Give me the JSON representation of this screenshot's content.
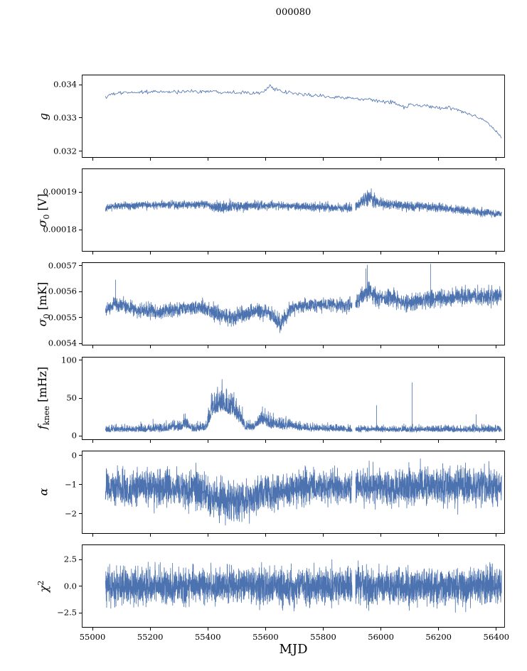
{
  "figure": {
    "title": "000080",
    "xlabel": "MJD",
    "line_color": "#4c72b0",
    "spine_color": "#000000",
    "background": "#ffffff"
  },
  "x_axis": {
    "xlim": [
      54963,
      56430
    ],
    "ticks": [
      55000,
      55200,
      55400,
      55600,
      55800,
      56000,
      56200,
      56400
    ],
    "tick_labels": [
      "55000",
      "55200",
      "55400",
      "55600",
      "55800",
      "56000",
      "56200",
      "56400"
    ],
    "data_start": 55045,
    "data_end": 56418,
    "gap": [
      55900,
      55912
    ]
  },
  "chart_data": [
    {
      "type": "line",
      "id": "g",
      "ylabel": [
        {
          "t": "g",
          "it": true
        }
      ],
      "ylim": [
        0.0318,
        0.0343
      ],
      "yticks": [
        0.032,
        0.033,
        0.034
      ],
      "ytick_labels": [
        "0.032",
        "0.033",
        "0.034"
      ],
      "n_points": 480,
      "gap": false,
      "trend": [
        [
          55045,
          0.03362
        ],
        [
          55070,
          0.03372
        ],
        [
          55120,
          0.03376
        ],
        [
          55180,
          0.03378
        ],
        [
          55250,
          0.03378
        ],
        [
          55320,
          0.03379
        ],
        [
          55400,
          0.0338
        ],
        [
          55470,
          0.03378
        ],
        [
          55540,
          0.03376
        ],
        [
          55590,
          0.03377
        ],
        [
          55615,
          0.03396
        ],
        [
          55635,
          0.03384
        ],
        [
          55665,
          0.03377
        ],
        [
          55700,
          0.03373
        ],
        [
          55760,
          0.03368
        ],
        [
          55820,
          0.03364
        ],
        [
          55880,
          0.0336
        ],
        [
          55940,
          0.03355
        ],
        [
          56000,
          0.0335
        ],
        [
          56050,
          0.03346
        ],
        [
          56080,
          0.0333
        ],
        [
          56100,
          0.03341
        ],
        [
          56150,
          0.03335
        ],
        [
          56200,
          0.0333
        ],
        [
          56240,
          0.03331
        ],
        [
          56270,
          0.03322
        ],
        [
          56310,
          0.0331
        ],
        [
          56350,
          0.03297
        ],
        [
          56385,
          0.03272
        ],
        [
          56418,
          0.03244
        ]
      ],
      "sigma": [
        [
          55045,
          3e-05
        ],
        [
          55600,
          2.8e-05
        ],
        [
          56418,
          2.5e-05
        ]
      ]
    },
    {
      "type": "line",
      "id": "sigma0_V",
      "ylabel": [
        {
          "t": "σ",
          "it": true
        },
        {
          "t": "0",
          "sub": true
        },
        {
          "t": " [V]"
        }
      ],
      "ylim": [
        0.0001742,
        0.0001962
      ],
      "yticks": [
        0.00018,
        0.00019
      ],
      "ytick_labels": [
        "0.00018",
        "0.00019"
      ],
      "n_points": 3000,
      "gap": true,
      "trend": [
        [
          55045,
          0.0001859
        ],
        [
          55100,
          0.0001863
        ],
        [
          55160,
          0.0001865
        ],
        [
          55240,
          0.0001866
        ],
        [
          55320,
          0.0001866
        ],
        [
          55400,
          0.0001867
        ],
        [
          55418,
          0.0001859
        ],
        [
          55470,
          0.0001861
        ],
        [
          55540,
          0.0001863
        ],
        [
          55620,
          0.0001864
        ],
        [
          55700,
          0.0001862
        ],
        [
          55780,
          0.000186
        ],
        [
          55850,
          0.0001858
        ],
        [
          55910,
          0.0001858
        ],
        [
          55940,
          0.0001878
        ],
        [
          55958,
          0.0001888
        ],
        [
          55980,
          0.0001876
        ],
        [
          56005,
          0.0001869
        ],
        [
          56040,
          0.0001866
        ],
        [
          56090,
          0.0001863
        ],
        [
          56140,
          0.0001862
        ],
        [
          56190,
          0.0001859
        ],
        [
          56240,
          0.0001856
        ],
        [
          56290,
          0.0001851
        ],
        [
          56330,
          0.0001847
        ],
        [
          56370,
          0.0001846
        ],
        [
          56400,
          0.0001842
        ],
        [
          56418,
          0.0001841
        ]
      ],
      "sigma": [
        [
          55045,
          4.5e-07
        ],
        [
          55410,
          5e-07
        ],
        [
          55430,
          8e-07
        ],
        [
          55520,
          7e-07
        ],
        [
          55600,
          5e-07
        ],
        [
          55920,
          6e-07
        ],
        [
          55955,
          1e-06
        ],
        [
          56000,
          6e-07
        ],
        [
          56418,
          5e-07
        ]
      ]
    },
    {
      "type": "line",
      "id": "sigma0_mK",
      "ylabel": [
        {
          "t": "σ",
          "it": true
        },
        {
          "t": "0",
          "sub": true
        },
        {
          "t": " [mK]"
        }
      ],
      "ylim": [
        0.005392,
        0.005712
      ],
      "yticks": [
        0.0054,
        0.0055,
        0.0056,
        0.0057
      ],
      "ytick_labels": [
        "0.0054",
        "0.0055",
        "0.0056",
        "0.0057"
      ],
      "n_points": 3000,
      "gap": true,
      "trend": [
        [
          55045,
          0.00552
        ],
        [
          55075,
          0.005555
        ],
        [
          55105,
          0.005545
        ],
        [
          55150,
          0.00553
        ],
        [
          55210,
          0.005522
        ],
        [
          55270,
          0.005525
        ],
        [
          55330,
          0.005532
        ],
        [
          55380,
          0.005542
        ],
        [
          55415,
          0.005522
        ],
        [
          55450,
          0.005508
        ],
        [
          55485,
          0.0055
        ],
        [
          55520,
          0.005512
        ],
        [
          55560,
          0.005522
        ],
        [
          55600,
          0.005527
        ],
        [
          55630,
          0.0055
        ],
        [
          55652,
          0.005478
        ],
        [
          55672,
          0.005505
        ],
        [
          55695,
          0.005535
        ],
        [
          55730,
          0.005548
        ],
        [
          55775,
          0.005545
        ],
        [
          55825,
          0.005552
        ],
        [
          55875,
          0.005547
        ],
        [
          55915,
          0.005555
        ],
        [
          55940,
          0.005585
        ],
        [
          55960,
          0.005605
        ],
        [
          55982,
          0.00558
        ],
        [
          56008,
          0.005567
        ],
        [
          56038,
          0.005582
        ],
        [
          56068,
          0.00556
        ],
        [
          56100,
          0.005556
        ],
        [
          56135,
          0.005565
        ],
        [
          56165,
          0.00557
        ],
        [
          56200,
          0.00557
        ],
        [
          56240,
          0.005572
        ],
        [
          56280,
          0.00558
        ],
        [
          56320,
          0.005582
        ],
        [
          56360,
          0.005578
        ],
        [
          56400,
          0.005585
        ],
        [
          56418,
          0.005588
        ]
      ],
      "sigma": [
        [
          55045,
          1.3e-05
        ],
        [
          55380,
          1.4e-05
        ],
        [
          55450,
          1.6e-05
        ],
        [
          55600,
          1.4e-05
        ],
        [
          55640,
          1.8e-05
        ],
        [
          55700,
          1.3e-05
        ],
        [
          55900,
          1.4e-05
        ],
        [
          55945,
          2e-05
        ],
        [
          55990,
          1.7e-05
        ],
        [
          56050,
          1.6e-05
        ],
        [
          56150,
          1.6e-05
        ],
        [
          56418,
          1.6e-05
        ]
      ],
      "spikes": [
        [
          55080,
          0.005645
        ],
        [
          55948,
          0.005688
        ],
        [
          55953,
          0.005702
        ],
        [
          56172,
          0.005706
        ]
      ]
    },
    {
      "type": "line",
      "id": "f_knee",
      "ylabel": [
        {
          "t": "f",
          "it": true
        },
        {
          "t": "knee",
          "sub": true
        },
        {
          "t": " [mHz]"
        }
      ],
      "ylim": [
        -5,
        105
      ],
      "yticks": [
        0,
        50,
        100
      ],
      "ytick_labels": [
        "0",
        "50",
        "100"
      ],
      "n_points": 3000,
      "gap": true,
      "mode": "positive",
      "floor": 2,
      "trend": [
        [
          55045,
          8
        ],
        [
          55250,
          8
        ],
        [
          55275,
          11
        ],
        [
          55300,
          9
        ],
        [
          55320,
          14
        ],
        [
          55345,
          9
        ],
        [
          55370,
          9
        ],
        [
          55395,
          11
        ],
        [
          55412,
          26
        ],
        [
          55430,
          33
        ],
        [
          55450,
          35
        ],
        [
          55470,
          30
        ],
        [
          55492,
          27
        ],
        [
          55512,
          20
        ],
        [
          55530,
          10
        ],
        [
          55548,
          9
        ],
        [
          55565,
          12
        ],
        [
          55582,
          19
        ],
        [
          55600,
          16
        ],
        [
          55622,
          12
        ],
        [
          55642,
          14
        ],
        [
          55660,
          11
        ],
        [
          55685,
          12
        ],
        [
          55715,
          10
        ],
        [
          55755,
          9
        ],
        [
          55815,
          9
        ],
        [
          55900,
          8
        ],
        [
          56418,
          8
        ]
      ],
      "sigma": [
        [
          55045,
          3.5
        ],
        [
          55270,
          4.5
        ],
        [
          55320,
          6
        ],
        [
          55360,
          4
        ],
        [
          55395,
          5
        ],
        [
          55415,
          14
        ],
        [
          55450,
          17
        ],
        [
          55490,
          15
        ],
        [
          55515,
          11
        ],
        [
          55535,
          6
        ],
        [
          55558,
          5
        ],
        [
          55580,
          8
        ],
        [
          55605,
          8
        ],
        [
          55640,
          7
        ],
        [
          55668,
          6
        ],
        [
          55700,
          5
        ],
        [
          55760,
          4
        ],
        [
          55900,
          3.5
        ],
        [
          56418,
          3.5
        ]
      ],
      "spikes": [
        [
          55210,
          23
        ],
        [
          55322,
          30
        ],
        [
          55985,
          41
        ],
        [
          56108,
          71
        ],
        [
          56330,
          29
        ]
      ]
    },
    {
      "type": "line",
      "id": "alpha",
      "ylabel": [
        {
          "t": "α",
          "it": true
        }
      ],
      "ylim": [
        -2.68,
        0.17
      ],
      "yticks": [
        -2,
        -1,
        0
      ],
      "ytick_labels": [
        "−2",
        "−1",
        "0"
      ],
      "n_points": 3200,
      "gap": true,
      "trend": [
        [
          55045,
          -1.08
        ],
        [
          55200,
          -1.1
        ],
        [
          55280,
          -1.12
        ],
        [
          55330,
          -1.2
        ],
        [
          55365,
          -1.12
        ],
        [
          55395,
          -1.3
        ],
        [
          55430,
          -1.55
        ],
        [
          55470,
          -1.65
        ],
        [
          55515,
          -1.62
        ],
        [
          55550,
          -1.48
        ],
        [
          55580,
          -1.28
        ],
        [
          55605,
          -1.15
        ],
        [
          55635,
          -1.28
        ],
        [
          55665,
          -1.22
        ],
        [
          55695,
          -1.14
        ],
        [
          55745,
          -1.1
        ],
        [
          55850,
          -1.08
        ],
        [
          56000,
          -1.08
        ],
        [
          56200,
          -1.06
        ],
        [
          56418,
          -1.05
        ]
      ],
      "sigma": [
        [
          55045,
          0.27
        ],
        [
          55300,
          0.29
        ],
        [
          55400,
          0.33
        ],
        [
          55520,
          0.33
        ],
        [
          55600,
          0.3
        ],
        [
          55660,
          0.28
        ],
        [
          55850,
          0.27
        ],
        [
          55950,
          0.31
        ],
        [
          56100,
          0.3
        ],
        [
          56418,
          0.31
        ]
      ]
    },
    {
      "type": "line",
      "id": "chi2",
      "ylabel": [
        {
          "t": "χ",
          "it": true
        },
        {
          "t": "2",
          "sup": true
        }
      ],
      "ylim": [
        -3.9,
        3.9
      ],
      "yticks": [
        -2.5,
        0,
        2.5
      ],
      "ytick_labels": [
        "−2.5",
        "0.0",
        "2.5"
      ],
      "n_points": 3600,
      "gap": true,
      "trend": [
        [
          55045,
          0
        ],
        [
          56418,
          0
        ]
      ],
      "sigma": [
        [
          55045,
          0.82
        ],
        [
          56418,
          0.82
        ]
      ]
    }
  ]
}
